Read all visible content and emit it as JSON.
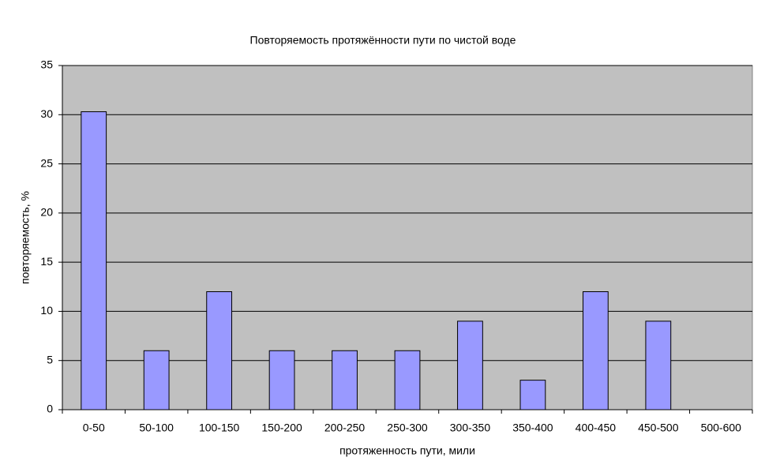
{
  "chart_data": {
    "type": "bar",
    "title": "Повторяемость протяжённости пути по чистой воде",
    "x_label": "протяженность пути, мили",
    "y_label": "повторяемость, %",
    "categories": [
      "0-50",
      "50-100",
      "100-150",
      "150-200",
      "200-250",
      "250-300",
      "300-350",
      "350-400",
      "400-450",
      "450-500",
      "500-600"
    ],
    "values": [
      30.3,
      6,
      12,
      6,
      6,
      6,
      9,
      3,
      12,
      9,
      0
    ],
    "color": "#9999ff",
    "ylim": [
      0,
      35
    ],
    "yticks": [
      0,
      5,
      10,
      15,
      20,
      25,
      30,
      35
    ],
    "grid": true
  }
}
